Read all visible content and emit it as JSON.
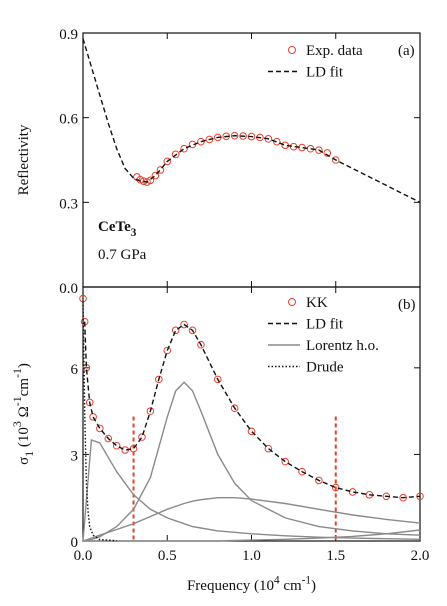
{
  "chart_data": [
    {
      "type": "line",
      "panel": "(a)",
      "ylabel": [
        {
          "t": "Reflectivity"
        }
      ],
      "annotations": [
        [
          {
            "t": "CeTe"
          },
          {
            "sub": "3"
          }
        ],
        [
          {
            "t": "0.7 GPa"
          }
        ]
      ],
      "xlim": [
        0,
        2
      ],
      "xticks": [
        0,
        0.5,
        1,
        1.5,
        2
      ],
      "ylim": [
        0,
        0.9
      ],
      "yticks": [
        {
          "value": 0,
          "label": "0.0"
        },
        0.3,
        0.6,
        0.9
      ],
      "series": [
        {
          "name": "Exp. data",
          "style": "markers",
          "color": "#e8402e",
          "x": [
            0.32,
            0.34,
            0.36,
            0.38,
            0.4,
            0.43,
            0.46,
            0.5,
            0.55,
            0.6,
            0.65,
            0.7,
            0.75,
            0.8,
            0.85,
            0.9,
            0.95,
            1.0,
            1.05,
            1.1,
            1.15,
            1.2,
            1.25,
            1.3,
            1.35,
            1.4,
            1.45,
            1.5
          ],
          "values": [
            0.39,
            0.38,
            0.375,
            0.372,
            0.378,
            0.395,
            0.415,
            0.445,
            0.47,
            0.49,
            0.505,
            0.515,
            0.523,
            0.53,
            0.534,
            0.536,
            0.535,
            0.533,
            0.53,
            0.525,
            0.515,
            0.502,
            0.497,
            0.494,
            0.49,
            0.485,
            0.475,
            0.45
          ]
        },
        {
          "name": "LD fit",
          "style": "dashed",
          "color": "#111111",
          "x": [
            0,
            0.05,
            0.1,
            0.15,
            0.2,
            0.25,
            0.3,
            0.34,
            0.38,
            0.43,
            0.5,
            0.6,
            0.7,
            0.8,
            0.9,
            1.0,
            1.1,
            1.2,
            1.3,
            1.4,
            1.5,
            1.6,
            1.7,
            1.8,
            1.9,
            2.0
          ],
          "values": [
            0.88,
            0.78,
            0.68,
            0.58,
            0.49,
            0.42,
            0.385,
            0.375,
            0.372,
            0.395,
            0.445,
            0.49,
            0.515,
            0.53,
            0.536,
            0.533,
            0.525,
            0.502,
            0.494,
            0.485,
            0.45,
            0.42,
            0.39,
            0.36,
            0.33,
            0.3
          ]
        }
      ]
    },
    {
      "type": "line",
      "panel": "(b)",
      "ylabel": [
        {
          "t": "σ"
        },
        {
          "sub": "1"
        },
        {
          "t": " (10"
        },
        {
          "sup": "3"
        },
        {
          "t": " Ω"
        },
        {
          "sup": "-1"
        },
        {
          "t": "cm"
        },
        {
          "sup": "-1"
        },
        {
          "t": ")"
        }
      ],
      "xlabel": [
        {
          "t": "Frequency (10"
        },
        {
          "sup": "4"
        },
        {
          "t": " cm"
        },
        {
          "sup": "-1"
        },
        {
          "t": ")"
        }
      ],
      "xlim": [
        0,
        2
      ],
      "xticks": [
        {
          "value": 0,
          "label": "0.0"
        },
        0.5,
        {
          "value": 1,
          "label": "1.0"
        },
        1.5,
        {
          "value": 2,
          "label": "2.0"
        }
      ],
      "ylim": [
        0,
        8.8
      ],
      "yticks": [
        0,
        3,
        6
      ],
      "vlines": [
        0.3,
        1.5
      ],
      "vline_color": "#e8402e",
      "series": [
        {
          "name": "KK",
          "style": "markers",
          "color": "#e8402e",
          "x": [
            0,
            0.01,
            0.02,
            0.04,
            0.06,
            0.1,
            0.15,
            0.2,
            0.25,
            0.3,
            0.35,
            0.4,
            0.45,
            0.5,
            0.55,
            0.6,
            0.65,
            0.7,
            0.8,
            0.9,
            1.0,
            1.1,
            1.2,
            1.3,
            1.4,
            1.5,
            1.6,
            1.7,
            1.8,
            1.9,
            2.0
          ],
          "values": [
            8.4,
            7.6,
            6.0,
            4.8,
            4.3,
            3.9,
            3.55,
            3.3,
            3.15,
            3.2,
            3.6,
            4.5,
            5.6,
            6.6,
            7.3,
            7.5,
            7.3,
            6.8,
            5.6,
            4.6,
            3.8,
            3.2,
            2.75,
            2.4,
            2.1,
            1.85,
            1.7,
            1.6,
            1.55,
            1.5,
            1.55
          ]
        },
        {
          "name": "LD fit",
          "style": "dashed",
          "color": "#111111",
          "x": [
            0.01,
            0.02,
            0.04,
            0.06,
            0.1,
            0.15,
            0.2,
            0.25,
            0.3,
            0.35,
            0.4,
            0.45,
            0.5,
            0.55,
            0.6,
            0.65,
            0.7,
            0.8,
            0.9,
            1.0,
            1.1,
            1.2,
            1.3,
            1.4,
            1.5,
            1.6,
            1.7,
            1.8,
            1.9,
            2.0
          ],
          "values": [
            7.6,
            6.0,
            4.8,
            4.3,
            3.9,
            3.55,
            3.3,
            3.15,
            3.2,
            3.6,
            4.5,
            5.6,
            6.6,
            7.3,
            7.5,
            7.3,
            6.8,
            5.6,
            4.6,
            3.8,
            3.2,
            2.75,
            2.4,
            2.1,
            1.85,
            1.7,
            1.6,
            1.55,
            1.5,
            1.55
          ]
        },
        {
          "name": "Lorentz h.o.",
          "style": "solid",
          "color": "#8a8a8a",
          "x": [
            0,
            0.05,
            0.1,
            0.2,
            0.3,
            0.4,
            0.5,
            0.55,
            0.6,
            0.65,
            0.7,
            0.8,
            0.9,
            1.0,
            1.2,
            1.4,
            1.6,
            1.8,
            2.0
          ],
          "curves": [
            [
              0,
              3.5,
              3.4,
              2.4,
              1.6,
              1.1,
              0.8,
              0.7,
              0.6,
              0.5,
              0.45,
              0.35,
              0.3,
              0.25,
              0.18,
              0.13,
              0.1,
              0.08,
              0.06
            ],
            [
              0,
              0.05,
              0.15,
              0.5,
              1.1,
              2.2,
              4.3,
              5.2,
              5.5,
              5.2,
              4.5,
              3.0,
              2.0,
              1.4,
              0.8,
              0.5,
              0.35,
              0.25,
              0.2
            ],
            [
              0,
              0.1,
              0.2,
              0.4,
              0.6,
              0.85,
              1.1,
              1.2,
              1.3,
              1.38,
              1.43,
              1.5,
              1.5,
              1.45,
              1.3,
              1.1,
              0.9,
              0.75,
              0.62
            ],
            [
              0,
              0,
              0,
              0,
              0,
              0,
              0,
              0,
              0,
              0,
              0,
              0,
              0.02,
              0.03,
              0.06,
              0.1,
              0.16,
              0.25,
              0.38
            ]
          ]
        },
        {
          "name": "Drude",
          "style": "dotted",
          "color": "#111111",
          "x": [
            0,
            0.01,
            0.02,
            0.03,
            0.04,
            0.06,
            0.1,
            0.2
          ],
          "values": [
            8.3,
            4.5,
            2.0,
            1.0,
            0.5,
            0.2,
            0.05,
            0.01
          ]
        }
      ]
    }
  ]
}
